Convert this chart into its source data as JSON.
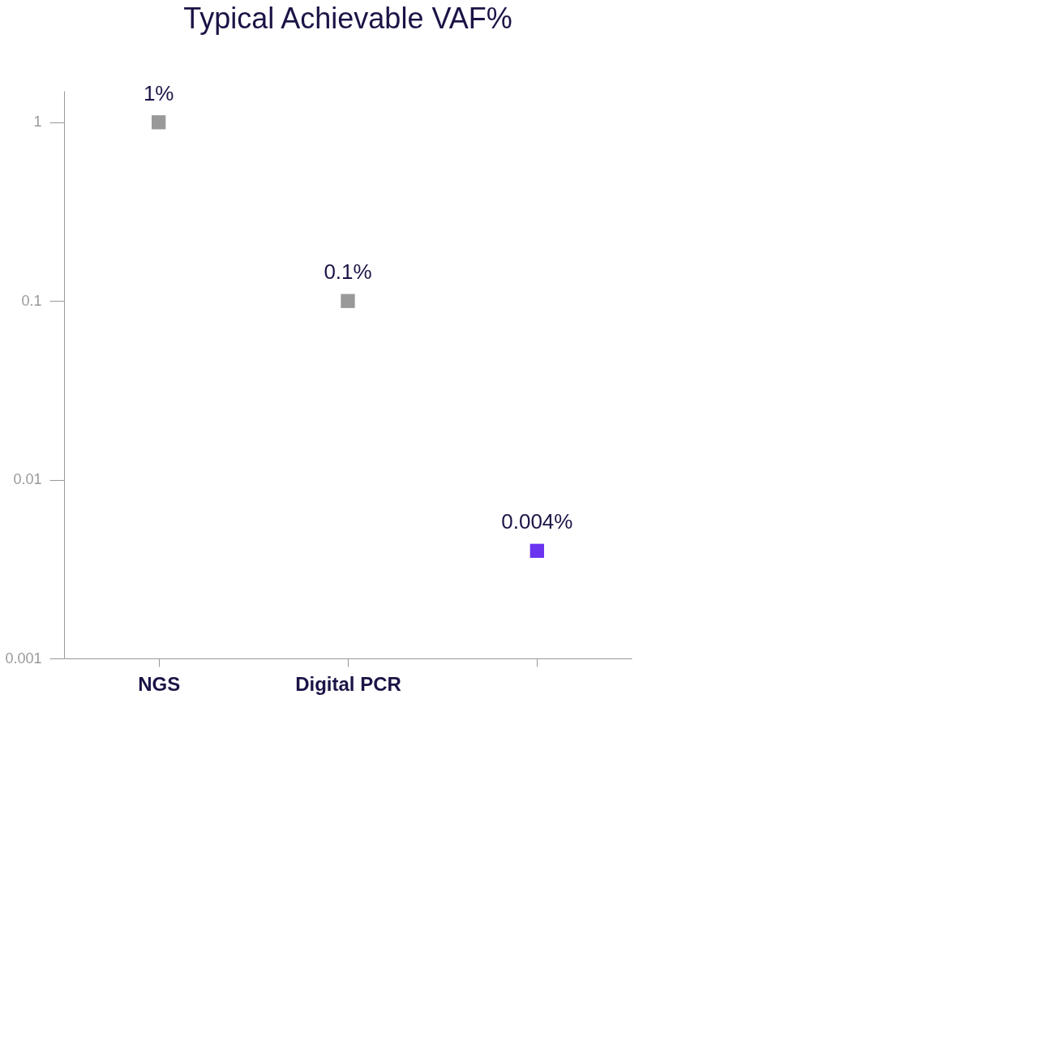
{
  "chart_data": {
    "type": "scatter",
    "title": "Typical Achievable VAF%",
    "categories": [
      "NGS",
      "Digital PCR",
      null
    ],
    "values": [
      1,
      0.1,
      0.004
    ],
    "colors": [
      "#999999",
      "#999999",
      "#6a34f0"
    ],
    "value_labels": [
      "1%",
      "0.1%",
      "0.004%"
    ],
    "marker": "square",
    "log": true,
    "ylim": [
      0.001,
      1.5
    ],
    "yticks": [
      0.001,
      0.01,
      0.1,
      1
    ],
    "grid": false
  }
}
